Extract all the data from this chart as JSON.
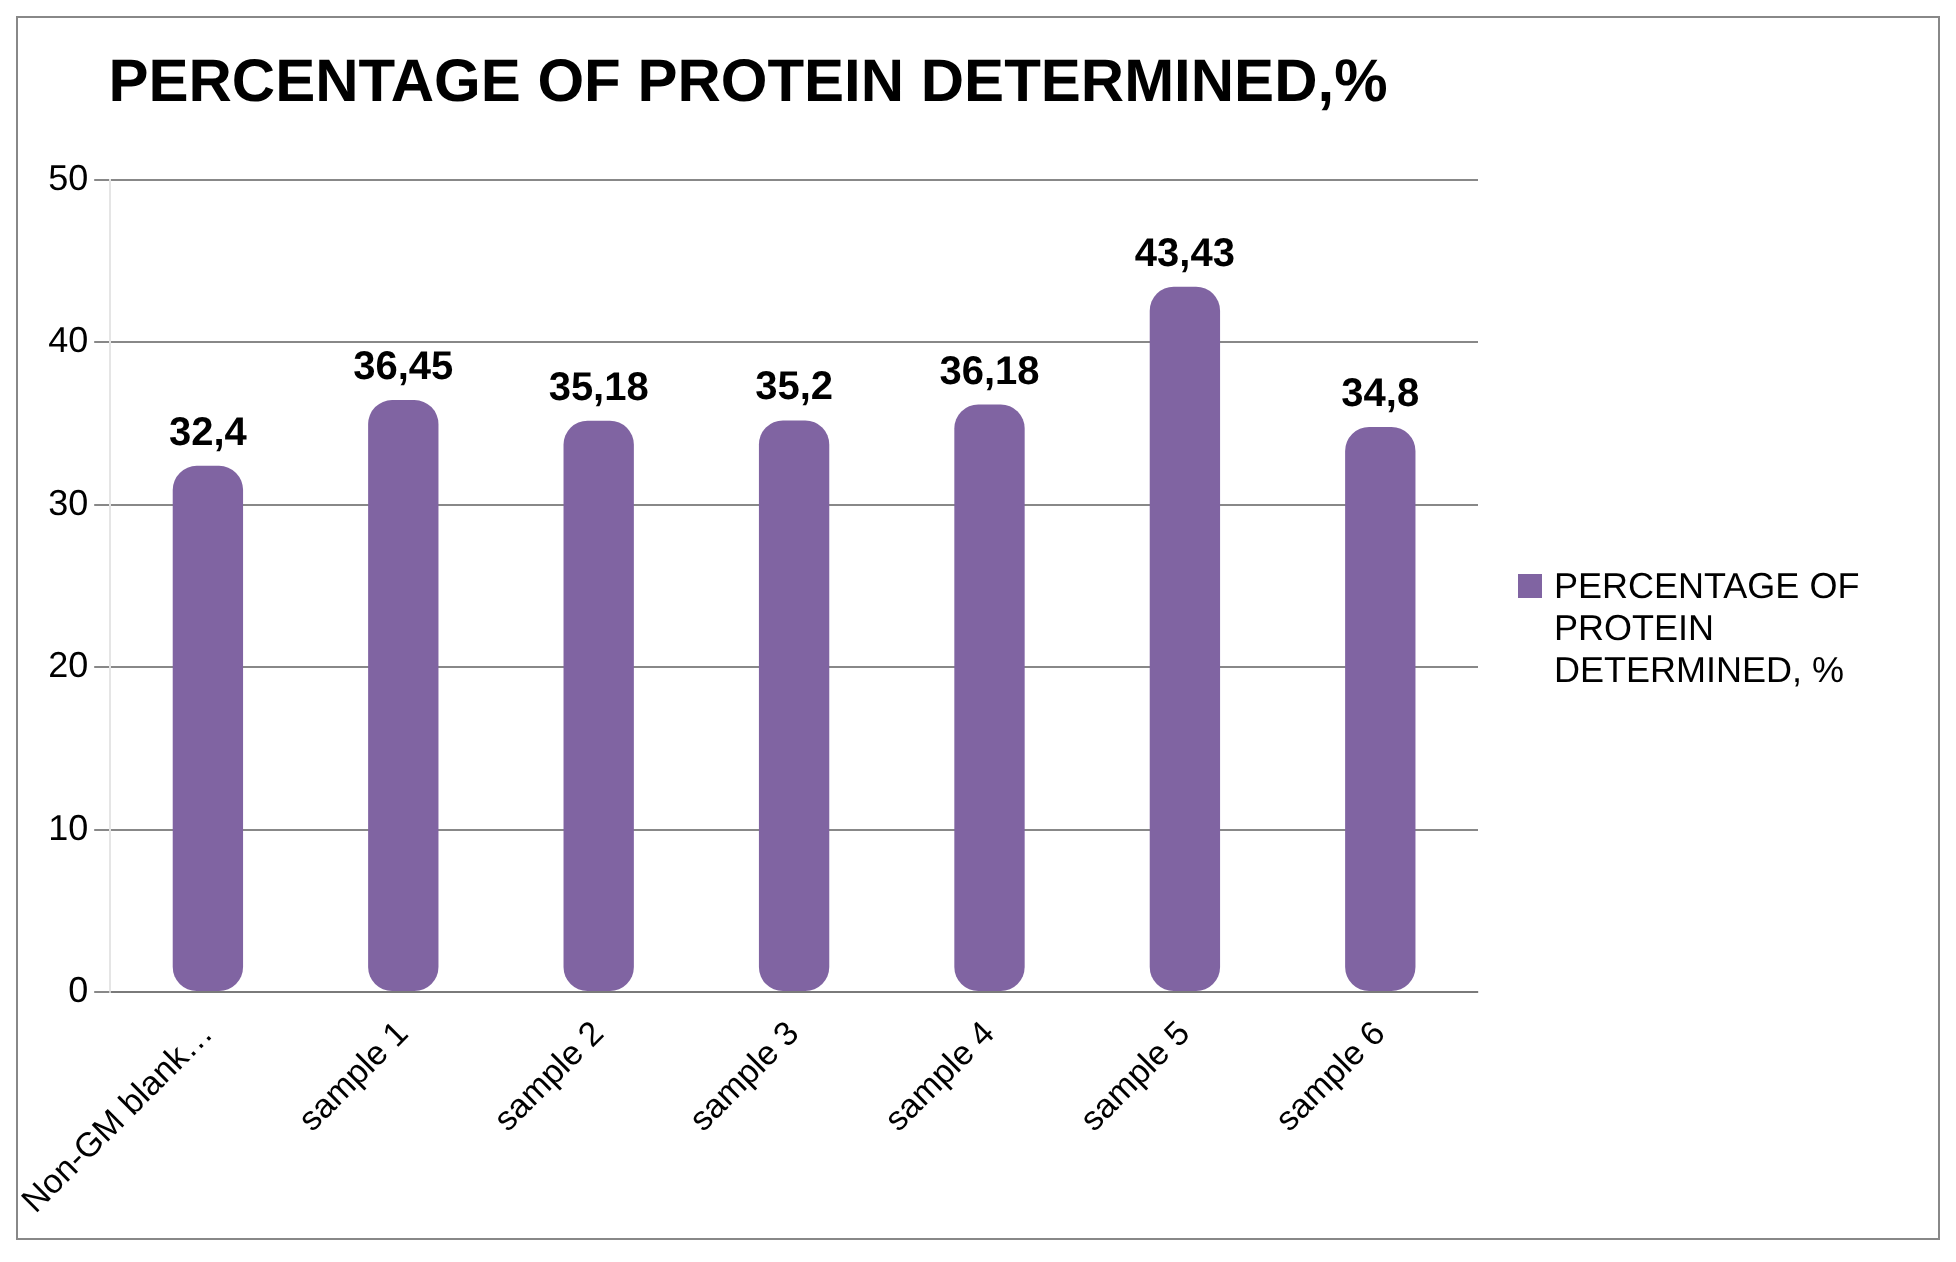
{
  "chart_data": {
    "type": "bar",
    "title": "PERCENTAGE OF PROTEIN DETERMINED,%",
    "categories": [
      "Non-GM blank…",
      "sample 1",
      "sample 2",
      "sample 3",
      "sample 4",
      "sample 5",
      "sample 6"
    ],
    "series": [
      {
        "name": "PERCENTAGE OF PROTEIN DETERMINED, %",
        "color": "#8064a2",
        "values": [
          32.4,
          36.45,
          35.18,
          35.2,
          36.18,
          43.43,
          34.8
        ],
        "value_labels": [
          "32,4",
          "36,45",
          "35,18",
          "35,2",
          "36,18",
          "43,43",
          "34,8"
        ]
      }
    ],
    "ylim": [
      0,
      50
    ],
    "yticks": [
      0,
      10,
      20,
      30,
      40,
      50
    ],
    "grid": "y",
    "legend": "right"
  }
}
